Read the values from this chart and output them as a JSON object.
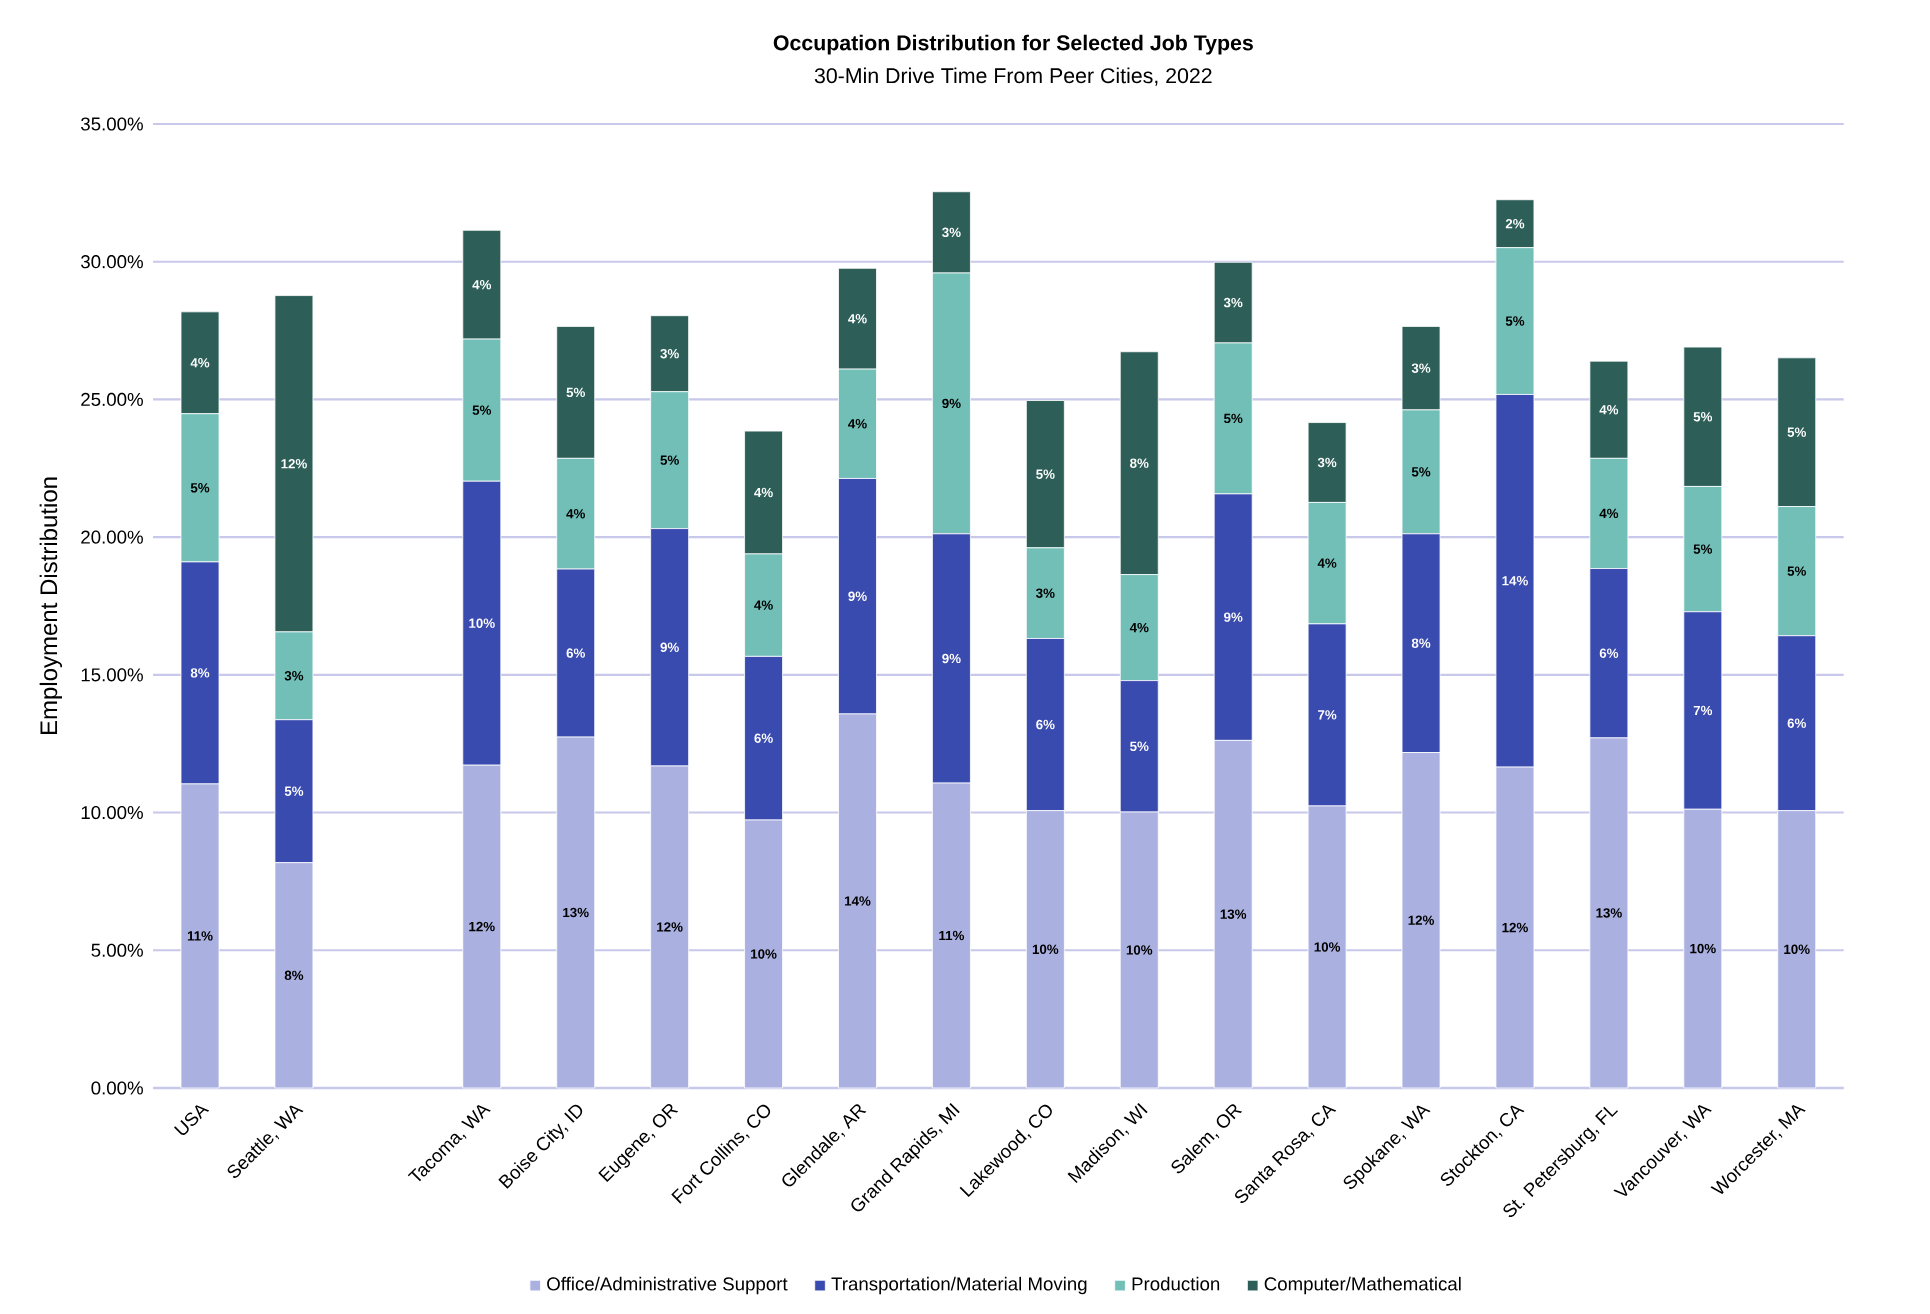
{
  "chart_data": {
    "type": "bar",
    "stacked": true,
    "title": "Occupation Distribution for Selected Job Types",
    "subtitle": "30-Min Drive Time From Peer Cities, 2022",
    "ylabel": "Employment  Distribution",
    "categories": [
      "USA",
      "Seattle, WA",
      null,
      "Tacoma, WA",
      "Boise City, ID",
      "Eugene, OR",
      "Fort Collins, CO",
      "Glendale, AR",
      "Grand Rapids, MI",
      "Lakewood, CO",
      "Madison, WI",
      "Salem, OR",
      "Santa Rosa, CA",
      "Spokane, WA",
      "Stockton, CA",
      "St. Petersburg, FL",
      "Vancouver, WA",
      "Worcester, MA"
    ],
    "series": [
      {
        "name": "Office/Administrative Support",
        "color": "#aab0e0",
        "values": [
          11.04,
          8.18,
          null,
          11.72,
          12.74,
          11.69,
          9.73,
          13.58,
          11.07,
          10.07,
          10.02,
          12.62,
          10.24,
          12.18,
          11.65,
          12.71,
          10.12,
          10.07
        ],
        "value_labels": [
          "11%",
          "8%",
          null,
          "12%",
          "13%",
          "12%",
          "10%",
          "14%",
          "11%",
          "10%",
          "10%",
          "13%",
          "10%",
          "12%",
          "12%",
          "13%",
          "10%",
          "10%"
        ]
      },
      {
        "name": "Transportation/Material Moving",
        "color": "#3a4bb0",
        "values": [
          8.06,
          5.19,
          null,
          10.31,
          6.1,
          8.62,
          5.94,
          8.55,
          9.05,
          6.25,
          4.77,
          8.95,
          6.61,
          7.94,
          13.53,
          6.15,
          7.17,
          6.35
        ],
        "value_labels": [
          "8%",
          "5%",
          null,
          "10%",
          "6%",
          "9%",
          "6%",
          "9%",
          "9%",
          "6%",
          "5%",
          "9%",
          "7%",
          "8%",
          "14%",
          "6%",
          "7%",
          "6%"
        ]
      },
      {
        "name": "Production",
        "color": "#72bfb8",
        "values": [
          5.38,
          3.19,
          null,
          5.16,
          4.02,
          4.97,
          3.72,
          3.97,
          9.47,
          3.29,
          3.85,
          5.48,
          4.41,
          4.5,
          5.33,
          4.0,
          4.55,
          4.69
        ],
        "value_labels": [
          "5%",
          "3%",
          null,
          "5%",
          "4%",
          "5%",
          "4%",
          "4%",
          "9%",
          "3%",
          "4%",
          "5%",
          "4%",
          "5%",
          "5%",
          "4%",
          "5%",
          "5%"
        ]
      },
      {
        "name": "Computer/Mathematical",
        "color": "#2d5f58",
        "values": [
          3.7,
          12.21,
          null,
          3.95,
          4.79,
          2.76,
          4.46,
          3.66,
          2.95,
          5.35,
          8.09,
          2.93,
          2.9,
          3.03,
          1.74,
          3.53,
          5.06,
          5.4
        ],
        "value_labels": [
          "4%",
          "12%",
          null,
          "4%",
          "5%",
          "3%",
          "4%",
          "4%",
          "3%",
          "5%",
          "8%",
          "3%",
          "3%",
          "3%",
          "2%",
          "4%",
          "5%",
          "5%"
        ]
      }
    ],
    "ylim": [
      0,
      35
    ],
    "yticks": [
      {
        "value": 0,
        "label": "0.00%"
      },
      {
        "value": 5,
        "label": "5.00%"
      },
      {
        "value": 10,
        "label": "10.00%"
      },
      {
        "value": 15,
        "label": "15.00%"
      },
      {
        "value": 20,
        "label": "20.00%"
      },
      {
        "value": 25,
        "label": "25.00%"
      },
      {
        "value": 30,
        "label": "30.00%"
      },
      {
        "value": 35,
        "label": "35.00%"
      }
    ],
    "grid": "y",
    "legend": "bottom"
  }
}
